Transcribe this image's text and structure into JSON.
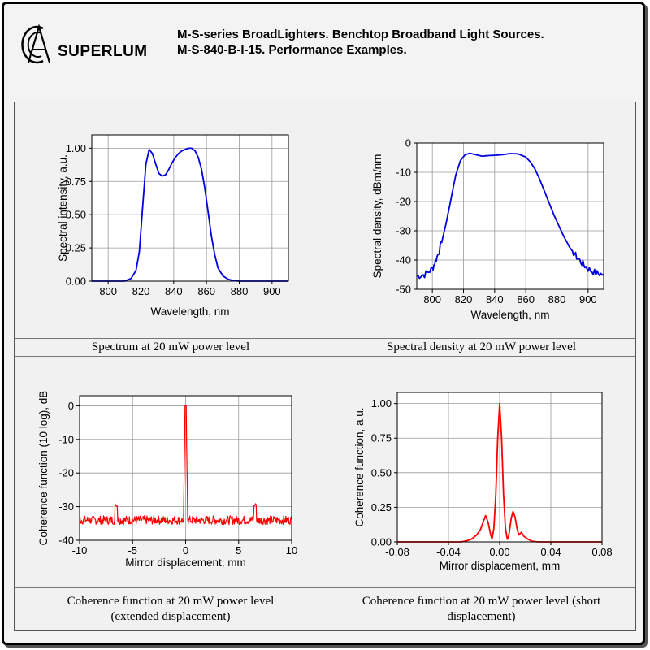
{
  "header": {
    "brand": "SUPERLUM",
    "title_line1": "M-S-series BroadLighters. Benchtop Broadband Light Sources.",
    "title_line2": "M-S-840-B-I-15. Performance Examples."
  },
  "panels": {
    "spectrum": {
      "caption": "Spectrum at 20 mW power level"
    },
    "density": {
      "caption": "Spectral density at 20 mW power level"
    },
    "coh_ext": {
      "caption_line1": "Coherence function at 20 mW power level",
      "caption_line2": "(extended displacement)"
    },
    "coh_short": {
      "caption_line1": "Coherence function at 20 mW power level (short",
      "caption_line2": "displacement)"
    }
  },
  "chart_data": [
    {
      "type": "line",
      "title": "Spectrum at 20 mW power level",
      "xlabel": "Wavelength, nm",
      "ylabel": "Spectral intensity, a.u.",
      "xlim": [
        790,
        910
      ],
      "ylim": [
        0,
        1.1
      ],
      "xticks": [
        800,
        820,
        840,
        860,
        880,
        900
      ],
      "yticks": [
        0.0,
        0.25,
        0.5,
        0.75,
        1.0
      ],
      "ytick_labels": [
        "0.00",
        "0.25",
        "0.50",
        "0.75",
        "1.00"
      ],
      "color": "#0000e0",
      "series": [
        {
          "name": "spectrum",
          "x": [
            790,
            810,
            814,
            817,
            819,
            821,
            823,
            825,
            827,
            829,
            831,
            833,
            835,
            837,
            839,
            841,
            843,
            845,
            847,
            849,
            851,
            853,
            855,
            857,
            859,
            861,
            863,
            865,
            867,
            870,
            873,
            876,
            880,
            890,
            910
          ],
          "y": [
            0,
            0,
            0.02,
            0.08,
            0.22,
            0.55,
            0.88,
            0.99,
            0.96,
            0.88,
            0.81,
            0.79,
            0.8,
            0.84,
            0.89,
            0.93,
            0.96,
            0.98,
            0.99,
            1.0,
            1.0,
            0.98,
            0.93,
            0.84,
            0.7,
            0.52,
            0.34,
            0.2,
            0.1,
            0.04,
            0.015,
            0.005,
            0,
            0,
            0
          ]
        }
      ]
    },
    {
      "type": "line",
      "title": "Spectral density at 20 mW power level",
      "xlabel": "Wavelength, nm",
      "ylabel": "Spectral density, dBm/nm",
      "xlim": [
        790,
        910
      ],
      "ylim": [
        -50,
        0
      ],
      "xticks": [
        800,
        820,
        840,
        860,
        880,
        900
      ],
      "yticks": [
        -50,
        -40,
        -30,
        -20,
        -10,
        0
      ],
      "color": "#0000e0",
      "series": [
        {
          "name": "density",
          "x": [
            790,
            795,
            800,
            803,
            806,
            809,
            812,
            815,
            818,
            821,
            824,
            828,
            832,
            836,
            840,
            845,
            850,
            855,
            860,
            863,
            866,
            869,
            872,
            875,
            878,
            881,
            884,
            888,
            892,
            896,
            900,
            905,
            910
          ],
          "y": [
            -45.5,
            -45,
            -43,
            -39,
            -34,
            -27,
            -19,
            -11,
            -6,
            -4,
            -3.5,
            -4,
            -4.5,
            -4.3,
            -4.2,
            -4,
            -3.6,
            -3.7,
            -4.8,
            -6.5,
            -9,
            -12.5,
            -16.5,
            -20.5,
            -24.5,
            -28,
            -31.5,
            -35.5,
            -38.5,
            -41,
            -43,
            -44.5,
            -45
          ]
        }
      ]
    },
    {
      "type": "line",
      "title": "Coherence function at 20 mW power level (extended displacement)",
      "xlabel": "Mirror displacement, mm",
      "ylabel": "Coherence function (10 log), dB",
      "xlim": [
        -10,
        10
      ],
      "ylim": [
        -40,
        3
      ],
      "xticks": [
        -10,
        -5,
        0,
        5,
        10
      ],
      "yticks": [
        -40,
        -30,
        -20,
        -10,
        0
      ],
      "noise_floor_db": -34,
      "color": "#ff0000",
      "series": [
        {
          "name": "coherence_extended",
          "x": [
            -10,
            -6.75,
            -6.55,
            -6.35,
            -0.15,
            0,
            0.15,
            6.35,
            6.55,
            6.75,
            10
          ],
          "y": [
            -34,
            -34,
            -29.5,
            -34,
            -34,
            0,
            -34,
            -34,
            -29.5,
            -34,
            -34
          ]
        }
      ]
    },
    {
      "type": "line",
      "title": "Coherence function at 20 mW power level (short displacement)",
      "xlabel": "Mirror displacement, mm",
      "ylabel": "Coherence function, a.u.",
      "xlim": [
        -0.08,
        0.08
      ],
      "ylim": [
        0,
        1.08
      ],
      "xticks": [
        -0.08,
        -0.04,
        0.0,
        0.04,
        0.08
      ],
      "xtick_labels": [
        "-0.08",
        "-0.04",
        "0.00",
        "0.04",
        "0.08"
      ],
      "yticks": [
        0.0,
        0.25,
        0.5,
        0.75,
        1.0
      ],
      "ytick_labels": [
        "0.00",
        "0.25",
        "0.50",
        "0.75",
        "1.00"
      ],
      "color": "#ff0000",
      "series": [
        {
          "name": "coherence_short",
          "x": [
            -0.08,
            -0.03,
            -0.025,
            -0.022,
            -0.018,
            -0.015,
            -0.013,
            -0.011,
            -0.009,
            -0.007,
            -0.006,
            -0.0045,
            -0.003,
            -0.0015,
            0,
            0.0015,
            0.003,
            0.0045,
            0.006,
            0.007,
            0.008,
            0.009,
            0.0105,
            0.012,
            0.0135,
            0.015,
            0.017,
            0.019,
            0.022,
            0.025,
            0.03,
            0.08
          ],
          "y": [
            0,
            0,
            0.01,
            0.02,
            0.05,
            0.09,
            0.14,
            0.19,
            0.14,
            0.05,
            0.02,
            0.1,
            0.35,
            0.75,
            1.0,
            0.75,
            0.35,
            0.1,
            0.02,
            0.04,
            0.1,
            0.17,
            0.22,
            0.18,
            0.1,
            0.05,
            0.07,
            0.04,
            0.02,
            0.005,
            0,
            0
          ]
        }
      ]
    }
  ]
}
